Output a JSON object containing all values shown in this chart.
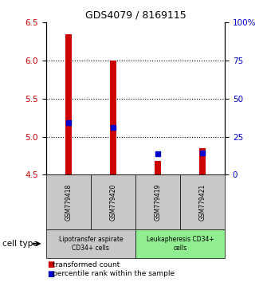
{
  "title": "GDS4079 / 8169115",
  "samples": [
    "GSM779418",
    "GSM779420",
    "GSM779419",
    "GSM779421"
  ],
  "red_values": [
    6.35,
    6.0,
    4.68,
    4.85
  ],
  "blue_values": [
    5.18,
    5.12,
    4.78,
    4.79
  ],
  "baseline": 4.5,
  "ylim_left": [
    4.5,
    6.5
  ],
  "ylim_right": [
    0,
    100
  ],
  "yticks_left": [
    4.5,
    5.0,
    5.5,
    6.0,
    6.5
  ],
  "yticks_right": [
    0,
    25,
    50,
    75,
    100
  ],
  "ytick_labels_right": [
    "0",
    "25",
    "50",
    "75",
    "100%"
  ],
  "bar_color": "#cc0000",
  "blue_color": "#0000cc",
  "axis_left_color": "#cc0000",
  "axis_right_color": "#0000cc",
  "bar_width": 0.15,
  "blue_marker_size": 5,
  "legend_red_label": "transformed count",
  "legend_blue_label": "percentile rank within the sample",
  "cell_type_label": "cell type",
  "group1_label": "Lipotransfer aspirate\nCD34+ cells",
  "group2_label": "Leukapheresis CD34+\ncells",
  "group1_color": "#c8c8c8",
  "group2_color": "#90ee90",
  "sample_box_color": "#c8c8c8"
}
